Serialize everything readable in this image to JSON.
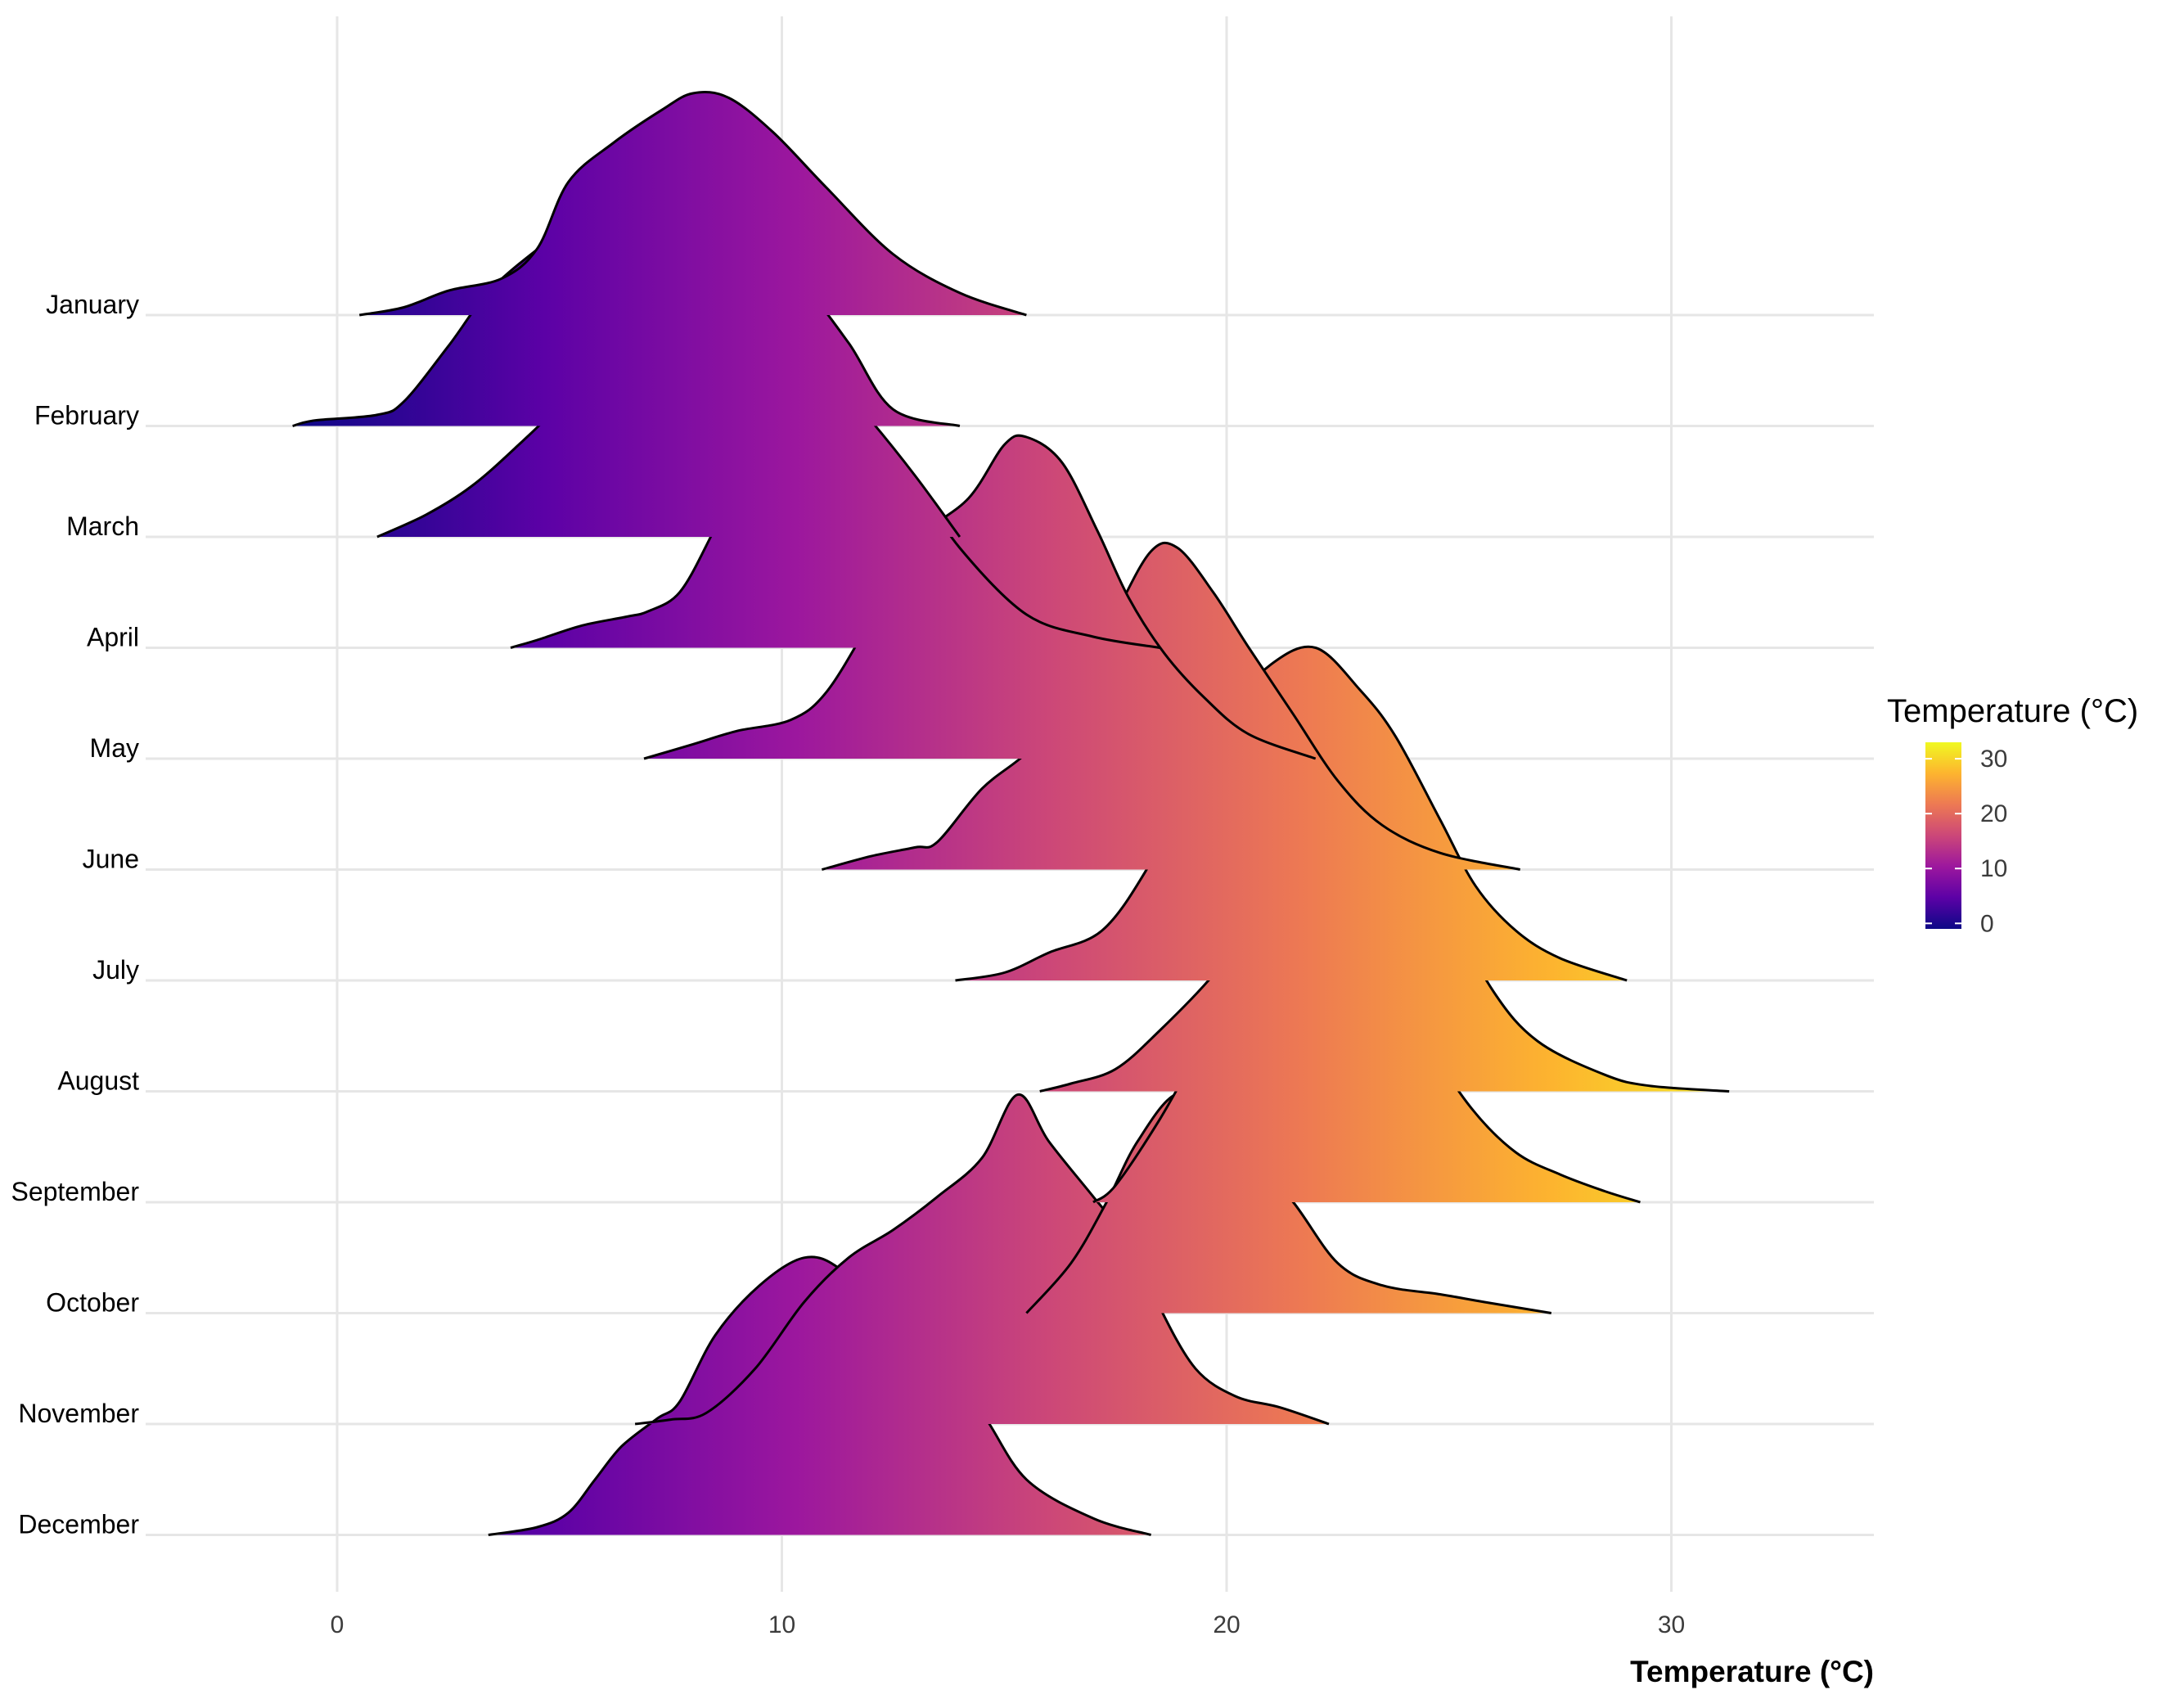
{
  "chart_data": {
    "type": "ridgeline",
    "title": "",
    "xlabel": "Temperature (°C)",
    "ylabel": "",
    "xlim": [
      -4.3,
      34.7
    ],
    "x_ticks": [
      0,
      10,
      20,
      30
    ],
    "x_tick_labels": [
      "0",
      "10",
      "20",
      "30"
    ],
    "grid": true,
    "fill": "gradient by temperature (plasma palette)",
    "legend": {
      "title": "Temperature (°C)",
      "position": "right",
      "range": [
        -1,
        33
      ],
      "ticks": [
        0,
        10,
        20,
        30
      ],
      "tick_labels": [
        "0",
        "10",
        "20",
        "30"
      ]
    },
    "colors": {
      "palette": [
        "#0d0887",
        "#5c01a6",
        "#9c179e",
        "#cc4778",
        "#ed7953",
        "#fdb42f",
        "#f0f921"
      ],
      "outline": "#000000",
      "grid": "#e6e6e6"
    },
    "series": [
      {
        "name": "January",
        "points": [
          [
            0.5,
            0
          ],
          [
            1.5,
            0.07
          ],
          [
            2.5,
            0.22
          ],
          [
            3.7,
            0.33
          ],
          [
            4.5,
            0.6
          ],
          [
            5.2,
            1.2
          ],
          [
            6.2,
            1.55
          ],
          [
            7.3,
            1.85
          ],
          [
            8.0,
            2.0
          ],
          [
            8.8,
            1.96
          ],
          [
            9.8,
            1.65
          ],
          [
            11.0,
            1.15
          ],
          [
            12.5,
            0.55
          ],
          [
            14.0,
            0.2
          ],
          [
            15.5,
            0
          ]
        ]
      },
      {
        "name": "February",
        "points": [
          [
            -1.0,
            0
          ],
          [
            -0.5,
            0.05
          ],
          [
            0.9,
            0.1
          ],
          [
            1.5,
            0.22
          ],
          [
            2.5,
            0.72
          ],
          [
            3.5,
            1.25
          ],
          [
            5.0,
            1.75
          ],
          [
            5.8,
            2.0
          ],
          [
            6.8,
            2.2
          ],
          [
            7.5,
            2.15
          ],
          [
            8.7,
            1.82
          ],
          [
            9.5,
            1.5
          ],
          [
            10.5,
            1.25
          ],
          [
            11.5,
            0.75
          ],
          [
            12.5,
            0.15
          ],
          [
            14.0,
            0
          ]
        ]
      },
      {
        "name": "March",
        "points": [
          [
            0.9,
            0
          ],
          [
            2.0,
            0.2
          ],
          [
            3.0,
            0.45
          ],
          [
            4.0,
            0.8
          ],
          [
            5.0,
            1.2
          ],
          [
            6.0,
            1.75
          ],
          [
            6.8,
            2.05
          ],
          [
            7.8,
            2.3
          ],
          [
            8.5,
            2.43
          ],
          [
            9.2,
            2.3
          ],
          [
            10.2,
            1.85
          ],
          [
            11.0,
            1.5
          ],
          [
            12.0,
            1.05
          ],
          [
            13.0,
            0.55
          ],
          [
            14.0,
            0
          ]
        ]
      },
      {
        "name": "April",
        "points": [
          [
            3.9,
            0
          ],
          [
            4.5,
            0.07
          ],
          [
            5.5,
            0.2
          ],
          [
            6.5,
            0.28
          ],
          [
            7.0,
            0.33
          ],
          [
            7.7,
            0.5
          ],
          [
            8.4,
            1.0
          ],
          [
            9.1,
            1.6
          ],
          [
            10.0,
            2.18
          ],
          [
            10.5,
            2.35
          ],
          [
            11.3,
            2.3
          ],
          [
            12.0,
            2.0
          ],
          [
            13.0,
            1.5
          ],
          [
            14.0,
            0.9
          ],
          [
            15.5,
            0.3
          ],
          [
            17.0,
            0.1
          ],
          [
            18.5,
            0
          ]
        ]
      },
      {
        "name": "May",
        "points": [
          [
            6.9,
            0
          ],
          [
            8.0,
            0.13
          ],
          [
            9.0,
            0.25
          ],
          [
            10.2,
            0.35
          ],
          [
            11.0,
            0.6
          ],
          [
            12.0,
            1.25
          ],
          [
            13.0,
            1.95
          ],
          [
            14.2,
            2.35
          ],
          [
            15.0,
            2.83
          ],
          [
            15.5,
            2.9
          ],
          [
            16.3,
            2.67
          ],
          [
            17.1,
            2.05
          ],
          [
            17.8,
            1.45
          ],
          [
            18.6,
            0.95
          ],
          [
            19.5,
            0.55
          ],
          [
            20.5,
            0.22
          ],
          [
            22.0,
            0
          ]
        ]
      },
      {
        "name": "June",
        "points": [
          [
            10.9,
            0
          ],
          [
            12.0,
            0.12
          ],
          [
            13.0,
            0.2
          ],
          [
            13.5,
            0.25
          ],
          [
            14.5,
            0.73
          ],
          [
            15.5,
            1.05
          ],
          [
            16.5,
            1.48
          ],
          [
            17.5,
            2.3
          ],
          [
            18.3,
            2.87
          ],
          [
            18.9,
            2.9
          ],
          [
            19.7,
            2.5
          ],
          [
            20.5,
            2.0
          ],
          [
            21.5,
            1.4
          ],
          [
            22.5,
            0.8
          ],
          [
            23.5,
            0.4
          ],
          [
            24.8,
            0.15
          ],
          [
            26.6,
            0
          ]
        ]
      },
      {
        "name": "July",
        "points": [
          [
            13.9,
            0
          ],
          [
            15.0,
            0.07
          ],
          [
            16.0,
            0.25
          ],
          [
            17.2,
            0.45
          ],
          [
            18.2,
            1.0
          ],
          [
            19.0,
            1.65
          ],
          [
            20.0,
            2.4
          ],
          [
            21.0,
            2.85
          ],
          [
            22.0,
            3.0
          ],
          [
            23.0,
            2.62
          ],
          [
            23.8,
            2.2
          ],
          [
            24.8,
            1.45
          ],
          [
            25.6,
            0.85
          ],
          [
            26.5,
            0.45
          ],
          [
            27.5,
            0.2
          ],
          [
            29.0,
            0
          ]
        ]
      },
      {
        "name": "August",
        "points": [
          [
            15.8,
            0
          ],
          [
            16.5,
            0.07
          ],
          [
            17.5,
            0.2
          ],
          [
            18.5,
            0.55
          ],
          [
            19.7,
            1.05
          ],
          [
            20.5,
            1.5
          ],
          [
            21.2,
            2.1
          ],
          [
            22.5,
            2.7
          ],
          [
            23.4,
            2.8
          ],
          [
            24.0,
            2.6
          ],
          [
            25.0,
            1.65
          ],
          [
            26.0,
            0.9
          ],
          [
            27.0,
            0.45
          ],
          [
            28.5,
            0.15
          ],
          [
            29.5,
            0.05
          ],
          [
            31.3,
            0
          ]
        ]
      },
      {
        "name": "September",
        "points": [
          [
            17.0,
            0
          ],
          [
            17.5,
            0.15
          ],
          [
            18.5,
            0.75
          ],
          [
            19.5,
            1.45
          ],
          [
            20.5,
            2.05
          ],
          [
            21.8,
            2.6
          ],
          [
            22.5,
            2.55
          ],
          [
            23.5,
            2.15
          ],
          [
            24.5,
            1.45
          ],
          [
            25.5,
            0.85
          ],
          [
            26.5,
            0.45
          ],
          [
            27.5,
            0.25
          ],
          [
            28.5,
            0.1
          ],
          [
            29.3,
            0
          ]
        ]
      },
      {
        "name": "October",
        "points": [
          [
            15.5,
            0
          ],
          [
            16.5,
            0.45
          ],
          [
            17.3,
            1.0
          ],
          [
            18.0,
            1.55
          ],
          [
            18.9,
            1.98
          ],
          [
            19.8,
            1.78
          ],
          [
            20.5,
            1.45
          ],
          [
            21.5,
            1.0
          ],
          [
            22.5,
            0.45
          ],
          [
            23.5,
            0.25
          ],
          [
            24.8,
            0.17
          ],
          [
            25.8,
            0.1
          ],
          [
            27.3,
            0
          ]
        ]
      },
      {
        "name": "November",
        "points": [
          [
            6.7,
            0
          ],
          [
            7.5,
            0.04
          ],
          [
            8.3,
            0.1
          ],
          [
            9.4,
            0.5
          ],
          [
            10.5,
            1.1
          ],
          [
            11.5,
            1.5
          ],
          [
            12.5,
            1.75
          ],
          [
            13.5,
            2.05
          ],
          [
            14.5,
            2.4
          ],
          [
            15.3,
            2.97
          ],
          [
            16.0,
            2.55
          ],
          [
            17.0,
            2.05
          ],
          [
            18.0,
            1.55
          ],
          [
            18.5,
            1.05
          ],
          [
            19.3,
            0.5
          ],
          [
            20.2,
            0.25
          ],
          [
            21.2,
            0.15
          ],
          [
            22.3,
            0
          ]
        ]
      },
      {
        "name": "December",
        "points": [
          [
            3.4,
            0
          ],
          [
            4.5,
            0.07
          ],
          [
            5.2,
            0.2
          ],
          [
            5.8,
            0.5
          ],
          [
            6.4,
            0.8
          ],
          [
            7.2,
            1.05
          ],
          [
            7.7,
            1.2
          ],
          [
            8.5,
            1.8
          ],
          [
            9.5,
            2.25
          ],
          [
            10.5,
            2.5
          ],
          [
            11.3,
            2.4
          ],
          [
            12.2,
            2.0
          ],
          [
            13.5,
            1.55
          ],
          [
            14.5,
            1.1
          ],
          [
            15.5,
            0.5
          ],
          [
            17.0,
            0.15
          ],
          [
            18.3,
            0
          ]
        ]
      }
    ]
  }
}
